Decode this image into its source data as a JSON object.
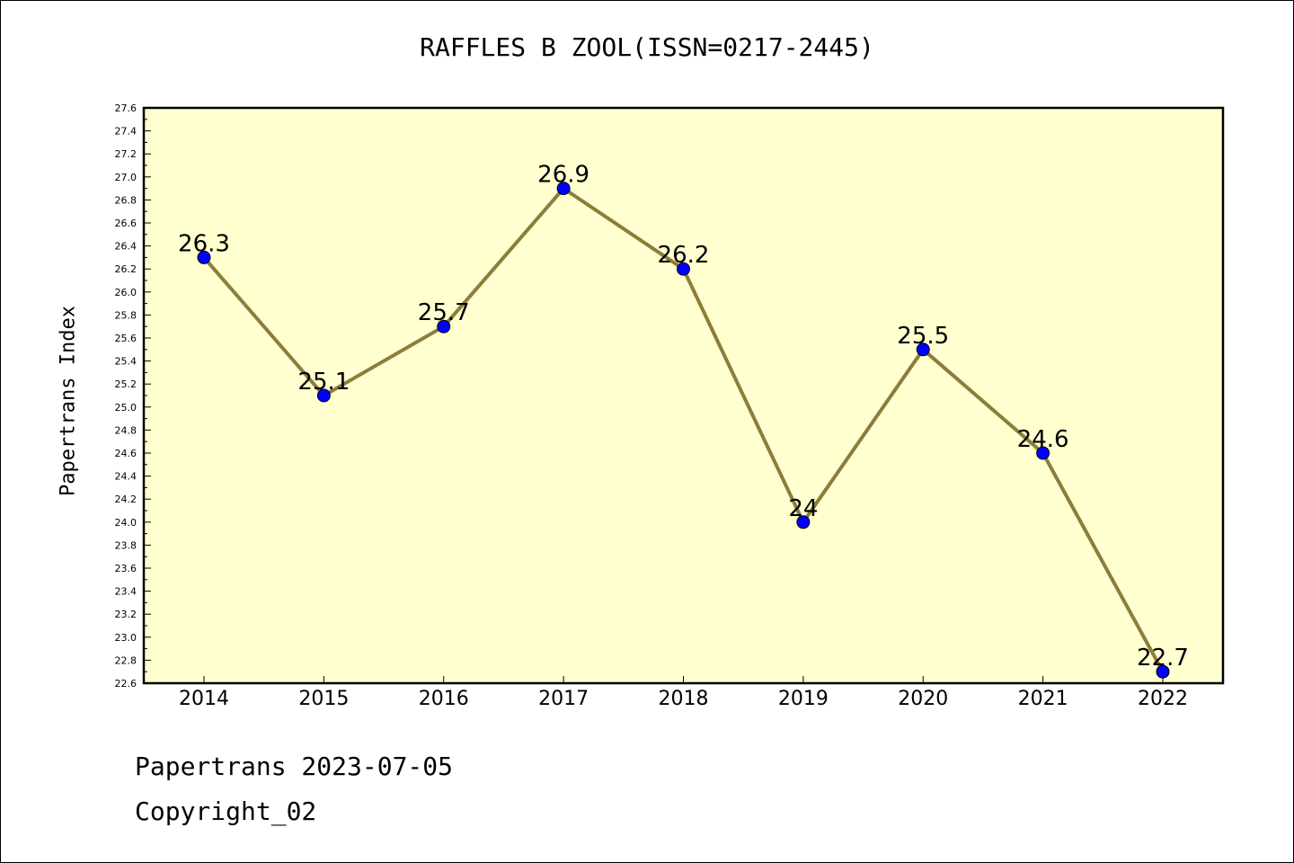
{
  "title": "RAFFLES B ZOOL(ISSN=0217-2445)",
  "ylabel": "Papertrans Index",
  "footer": {
    "line1": "Papertrans 2023-07-05",
    "line2": "Copyright_02"
  },
  "colors": {
    "background": "#ffffff",
    "plot_bg": "#ffffd0",
    "line": "#8b7d3a",
    "marker": "#0000ff"
  },
  "chart_data": {
    "type": "line",
    "title": "RAFFLES B ZOOL(ISSN=0217-2445)",
    "xlabel": "",
    "ylabel": "Papertrans Index",
    "categories": [
      "2014",
      "2015",
      "2016",
      "2017",
      "2018",
      "2019",
      "2020",
      "2021",
      "2022"
    ],
    "series": [
      {
        "values": [
          26.3,
          25.1,
          25.7,
          26.9,
          26.2,
          24.0,
          25.5,
          24.6,
          22.7
        ],
        "labels": [
          "26.3",
          "25.1",
          "25.7",
          "26.9",
          "26.2",
          "24",
          "25.5",
          "24.6",
          "22.7"
        ]
      }
    ],
    "ylim": [
      22.6,
      27.6
    ],
    "yticks": [
      "22.6",
      "22.8",
      "23.0",
      "23.2",
      "23.4",
      "23.6",
      "23.8",
      "24.0",
      "24.2",
      "24.4",
      "24.6",
      "24.8",
      "25.0",
      "25.2",
      "25.4",
      "25.6",
      "25.8",
      "26.0",
      "26.2",
      "26.4",
      "26.6",
      "26.8",
      "27.0",
      "27.2",
      "27.4",
      "27.6"
    ],
    "grid": false,
    "legend": "none"
  }
}
